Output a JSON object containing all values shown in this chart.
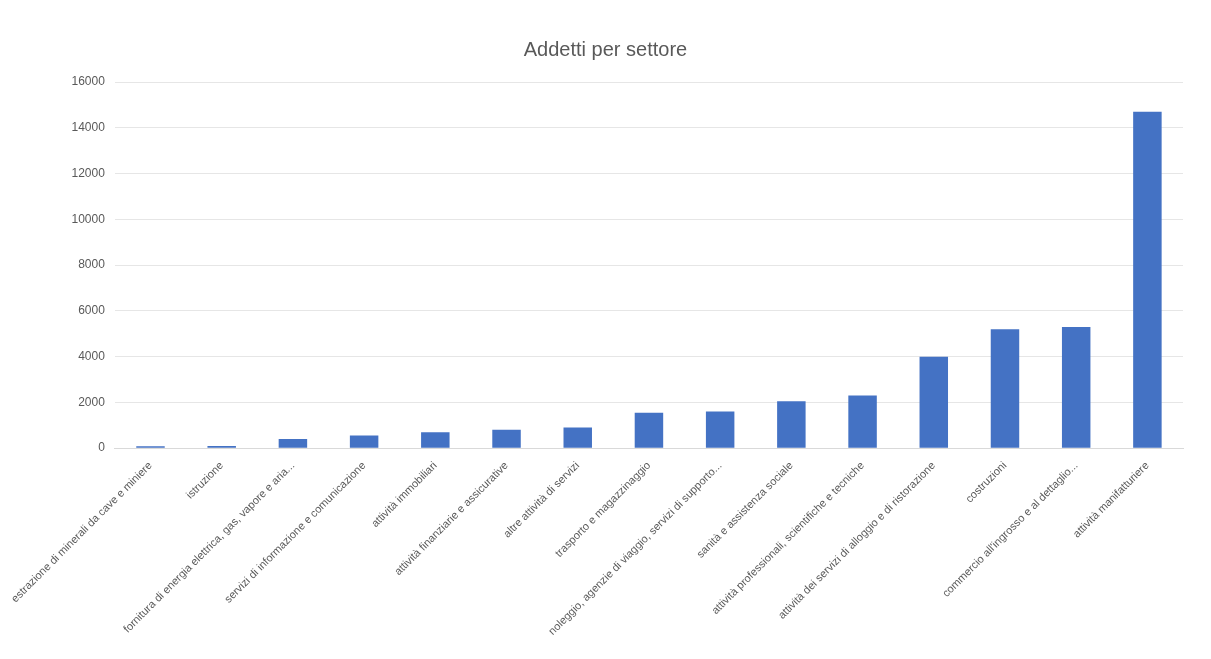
{
  "chart_data": {
    "type": "bar",
    "title": "Addetti per settore",
    "categories": [
      "estrazione di minerali da cave e miniere",
      "istruzione",
      "fornitura di energia elettrica, gas, vapore e aria...",
      "servizi di informazione e comunicazione",
      "attività immobiliari",
      "attività finanziarie e assicurative",
      "altre attività di servizi",
      "trasporto e magazzinaggio",
      "noleggio, agenzie di viaggio, servizi di supporto...",
      "sanità e assistenza sociale",
      "attività professionali, scientifiche e tecniche",
      "attività dei servizi di alloggio e di ristorazione",
      "costruzioni",
      "commercio all'ingrosso e al dettaglio...",
      "attività manifatturiere"
    ],
    "values": [
      80,
      100,
      400,
      550,
      700,
      800,
      900,
      1550,
      1600,
      2050,
      2300,
      4000,
      5200,
      5300,
      14700
    ],
    "color": "#4472c4",
    "ylim": [
      0,
      16000
    ],
    "yticks": [
      0,
      2000,
      4000,
      6000,
      8000,
      10000,
      12000,
      14000,
      16000
    ],
    "grid": "y"
  }
}
